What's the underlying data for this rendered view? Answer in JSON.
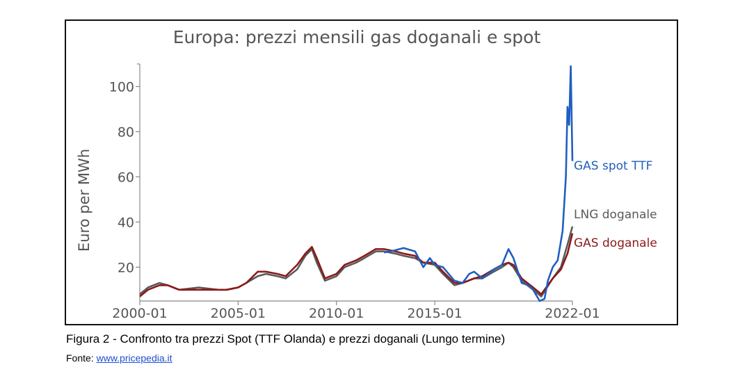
{
  "chart_data": {
    "type": "line",
    "title": "Europa: prezzi mensili gas doganali e spot",
    "ylabel": "Euro per MWh",
    "xlabel": "",
    "ylim": [
      5,
      110
    ],
    "xlim": [
      "2000-01",
      "2022-01"
    ],
    "yticks": [
      20,
      40,
      60,
      80,
      100
    ],
    "xticks": [
      "2000-01",
      "2005-01",
      "2010-01",
      "2015-01",
      "2022-01"
    ],
    "grid": false,
    "legend": "inline labels at line ends (right)",
    "series": [
      {
        "name": "GAS spot TTF",
        "color": "#1f5fbf",
        "points": [
          [
            "2012-06",
            26.5
          ],
          [
            "2013-01",
            27.5
          ],
          [
            "2013-06",
            28.5
          ],
          [
            "2014-01",
            27
          ],
          [
            "2014-06",
            20
          ],
          [
            "2014-10",
            24
          ],
          [
            "2015-01",
            21
          ],
          [
            "2015-06",
            20
          ],
          [
            "2016-01",
            14
          ],
          [
            "2016-06",
            13
          ],
          [
            "2016-10",
            17
          ],
          [
            "2017-01",
            18
          ],
          [
            "2017-06",
            15
          ],
          [
            "2018-01",
            19
          ],
          [
            "2018-06",
            21
          ],
          [
            "2018-10",
            28
          ],
          [
            "2019-01",
            24
          ],
          [
            "2019-06",
            13
          ],
          [
            "2019-10",
            12
          ],
          [
            "2020-01",
            10
          ],
          [
            "2020-05",
            5
          ],
          [
            "2020-08",
            6
          ],
          [
            "2020-10",
            14
          ],
          [
            "2021-01",
            20
          ],
          [
            "2021-04",
            23
          ],
          [
            "2021-07",
            36
          ],
          [
            "2021-09",
            60
          ],
          [
            "2021-10",
            91
          ],
          [
            "2021-11",
            83
          ],
          [
            "2021-12",
            109
          ],
          [
            "2022-01",
            67
          ]
        ]
      },
      {
        "name": "LNG doganale",
        "color": "#5a5a5a",
        "points": [
          [
            "2000-01",
            8
          ],
          [
            "2000-06",
            11
          ],
          [
            "2001-01",
            13
          ],
          [
            "2001-06",
            12
          ],
          [
            "2002-01",
            10
          ],
          [
            "2003-01",
            11
          ],
          [
            "2004-01",
            10
          ],
          [
            "2004-06",
            10
          ],
          [
            "2005-01",
            11
          ],
          [
            "2005-06",
            13
          ],
          [
            "2006-01",
            16
          ],
          [
            "2006-06",
            17
          ],
          [
            "2007-01",
            16
          ],
          [
            "2007-06",
            15
          ],
          [
            "2008-01",
            19
          ],
          [
            "2008-06",
            25
          ],
          [
            "2008-10",
            28
          ],
          [
            "2009-01",
            22
          ],
          [
            "2009-06",
            14
          ],
          [
            "2010-01",
            16
          ],
          [
            "2010-06",
            20
          ],
          [
            "2011-01",
            22
          ],
          [
            "2011-06",
            24
          ],
          [
            "2012-01",
            27
          ],
          [
            "2012-06",
            27
          ],
          [
            "2013-01",
            26
          ],
          [
            "2013-06",
            25
          ],
          [
            "2014-01",
            24
          ],
          [
            "2014-06",
            22
          ],
          [
            "2015-01",
            21
          ],
          [
            "2015-06",
            17
          ],
          [
            "2016-01",
            12
          ],
          [
            "2016-06",
            13
          ],
          [
            "2017-01",
            15
          ],
          [
            "2017-06",
            15
          ],
          [
            "2018-01",
            18
          ],
          [
            "2018-06",
            20
          ],
          [
            "2018-10",
            22
          ],
          [
            "2019-01",
            20
          ],
          [
            "2019-06",
            14
          ],
          [
            "2020-01",
            10
          ],
          [
            "2020-06",
            7
          ],
          [
            "2021-01",
            15
          ],
          [
            "2021-06",
            20
          ],
          [
            "2021-10",
            30
          ],
          [
            "2022-01",
            38
          ]
        ]
      },
      {
        "name": "GAS doganale",
        "color": "#8b1a1a",
        "points": [
          [
            "2000-01",
            7
          ],
          [
            "2000-06",
            10
          ],
          [
            "2001-01",
            12
          ],
          [
            "2001-06",
            12
          ],
          [
            "2002-01",
            10
          ],
          [
            "2003-01",
            10
          ],
          [
            "2004-01",
            10
          ],
          [
            "2004-06",
            10
          ],
          [
            "2005-01",
            11
          ],
          [
            "2005-06",
            13
          ],
          [
            "2006-01",
            18
          ],
          [
            "2006-06",
            18
          ],
          [
            "2007-01",
            17
          ],
          [
            "2007-06",
            16
          ],
          [
            "2008-01",
            21
          ],
          [
            "2008-06",
            26
          ],
          [
            "2008-10",
            29
          ],
          [
            "2009-01",
            24
          ],
          [
            "2009-06",
            15
          ],
          [
            "2010-01",
            17
          ],
          [
            "2010-06",
            21
          ],
          [
            "2011-01",
            23
          ],
          [
            "2011-06",
            25
          ],
          [
            "2012-01",
            28
          ],
          [
            "2012-06",
            28
          ],
          [
            "2013-01",
            27
          ],
          [
            "2013-06",
            26
          ],
          [
            "2014-01",
            25
          ],
          [
            "2014-06",
            22
          ],
          [
            "2015-01",
            22
          ],
          [
            "2015-06",
            18
          ],
          [
            "2016-01",
            13
          ],
          [
            "2016-06",
            13
          ],
          [
            "2017-01",
            15
          ],
          [
            "2017-06",
            16
          ],
          [
            "2018-01",
            19
          ],
          [
            "2018-06",
            21
          ],
          [
            "2018-10",
            22
          ],
          [
            "2019-01",
            21
          ],
          [
            "2019-06",
            15
          ],
          [
            "2020-01",
            11
          ],
          [
            "2020-06",
            8
          ],
          [
            "2021-01",
            15
          ],
          [
            "2021-06",
            19
          ],
          [
            "2021-10",
            26
          ],
          [
            "2022-01",
            35
          ]
        ]
      }
    ]
  },
  "caption": "Figura 2 - Confronto tra prezzi Spot (TTF Olanda) e prezzi doganali (Lungo termine)",
  "source_prefix": "Fonte: ",
  "source_link": "www.pricepedia.it"
}
